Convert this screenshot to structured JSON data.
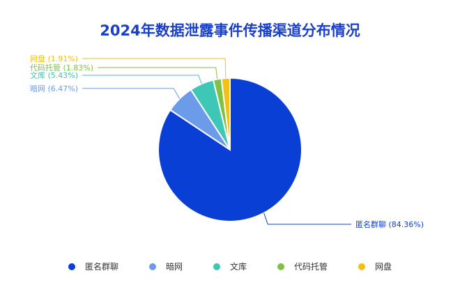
{
  "chart_data": {
    "type": "pie",
    "title": "2024年数据泄露事件传播渠道分布情况",
    "slices": [
      {
        "label": "匿名群聊",
        "value": 84.36,
        "color": "#0a3fd6",
        "data_label": "匿名群聊 (84.36%)"
      },
      {
        "label": "暗网",
        "value": 6.47,
        "color": "#6b9be9",
        "data_label": "暗网 (6.47%)"
      },
      {
        "label": "文库",
        "value": 5.43,
        "color": "#3ec6b6",
        "data_label": "文库 (5.43%)"
      },
      {
        "label": "代码托管",
        "value": 1.83,
        "color": "#7dc243",
        "data_label": "代码托管 (1.83%)"
      },
      {
        "label": "网盘",
        "value": 1.91,
        "color": "#f3c015",
        "data_label": "网盘 (1.91%)"
      }
    ],
    "legend_position": "bottom",
    "start_angle": "12 o'clock, clockwise"
  }
}
